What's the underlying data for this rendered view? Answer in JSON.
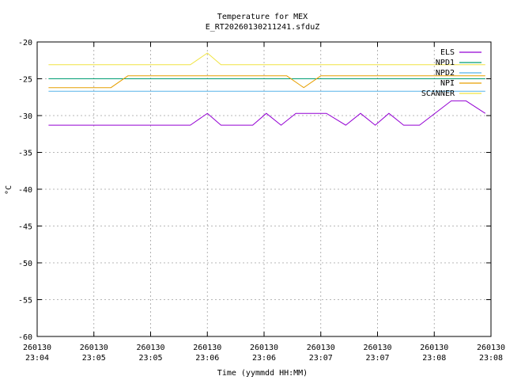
{
  "chart_data": {
    "type": "line",
    "title": "Temperature for MEX",
    "subtitle": "E_RT20260130211241.sfduZ",
    "xlabel": "Time (yymmdd HH:MM)",
    "ylabel": "°C",
    "ylim": [
      -60,
      -20
    ],
    "yticks": [
      -20,
      -25,
      -30,
      -35,
      -40,
      -45,
      -50,
      -55,
      -60
    ],
    "x_unit": "minutes after 23:04 on 260130",
    "xlim": [
      0,
      4.0
    ],
    "xticks": [
      {
        "x": 0.0,
        "date": "260130",
        "time": "23:04"
      },
      {
        "x": 0.5,
        "date": "260130",
        "time": "23:05"
      },
      {
        "x": 1.0,
        "date": "260130",
        "time": "23:05"
      },
      {
        "x": 1.5,
        "date": "260130",
        "time": "23:06"
      },
      {
        "x": 2.0,
        "date": "260130",
        "time": "23:06"
      },
      {
        "x": 2.5,
        "date": "260130",
        "time": "23:07"
      },
      {
        "x": 3.0,
        "date": "260130",
        "time": "23:07"
      },
      {
        "x": 3.5,
        "date": "260130",
        "time": "23:08"
      },
      {
        "x": 4.0,
        "date": "260130",
        "time": "23:08"
      }
    ],
    "grid": true,
    "legend_position": "top-right",
    "series": [
      {
        "name": "ELS",
        "color": "#9400d3",
        "points": [
          [
            0.1,
            -31.3
          ],
          [
            1.35,
            -31.3
          ],
          [
            1.5,
            -29.7
          ],
          [
            1.62,
            -31.3
          ],
          [
            1.9,
            -31.3
          ],
          [
            2.02,
            -29.7
          ],
          [
            2.15,
            -31.3
          ],
          [
            2.28,
            -29.7
          ],
          [
            2.55,
            -29.7
          ],
          [
            2.72,
            -31.3
          ],
          [
            2.85,
            -29.7
          ],
          [
            2.98,
            -31.3
          ],
          [
            3.1,
            -29.7
          ],
          [
            3.23,
            -31.3
          ],
          [
            3.37,
            -31.3
          ],
          [
            3.65,
            -28.0
          ],
          [
            3.78,
            -28.0
          ],
          [
            3.95,
            -29.7
          ]
        ]
      },
      {
        "name": "NPD1",
        "color": "#009e73",
        "points": [
          [
            0.1,
            -25.0
          ],
          [
            3.95,
            -25.0
          ]
        ]
      },
      {
        "name": "NPD2",
        "color": "#56b4e9",
        "points": [
          [
            0.1,
            -26.7
          ],
          [
            3.95,
            -26.7
          ]
        ]
      },
      {
        "name": "NPI",
        "color": "#e69f00",
        "points": [
          [
            0.1,
            -26.2
          ],
          [
            0.65,
            -26.2
          ],
          [
            0.8,
            -24.6
          ],
          [
            2.2,
            -24.6
          ],
          [
            2.35,
            -26.2
          ],
          [
            2.5,
            -24.6
          ],
          [
            3.95,
            -24.6
          ]
        ]
      },
      {
        "name": "SCANNER",
        "color": "#f0e442",
        "points": [
          [
            0.1,
            -23.1
          ],
          [
            1.35,
            -23.1
          ],
          [
            1.5,
            -21.5
          ],
          [
            1.62,
            -23.1
          ],
          [
            3.95,
            -23.1
          ]
        ]
      }
    ]
  }
}
